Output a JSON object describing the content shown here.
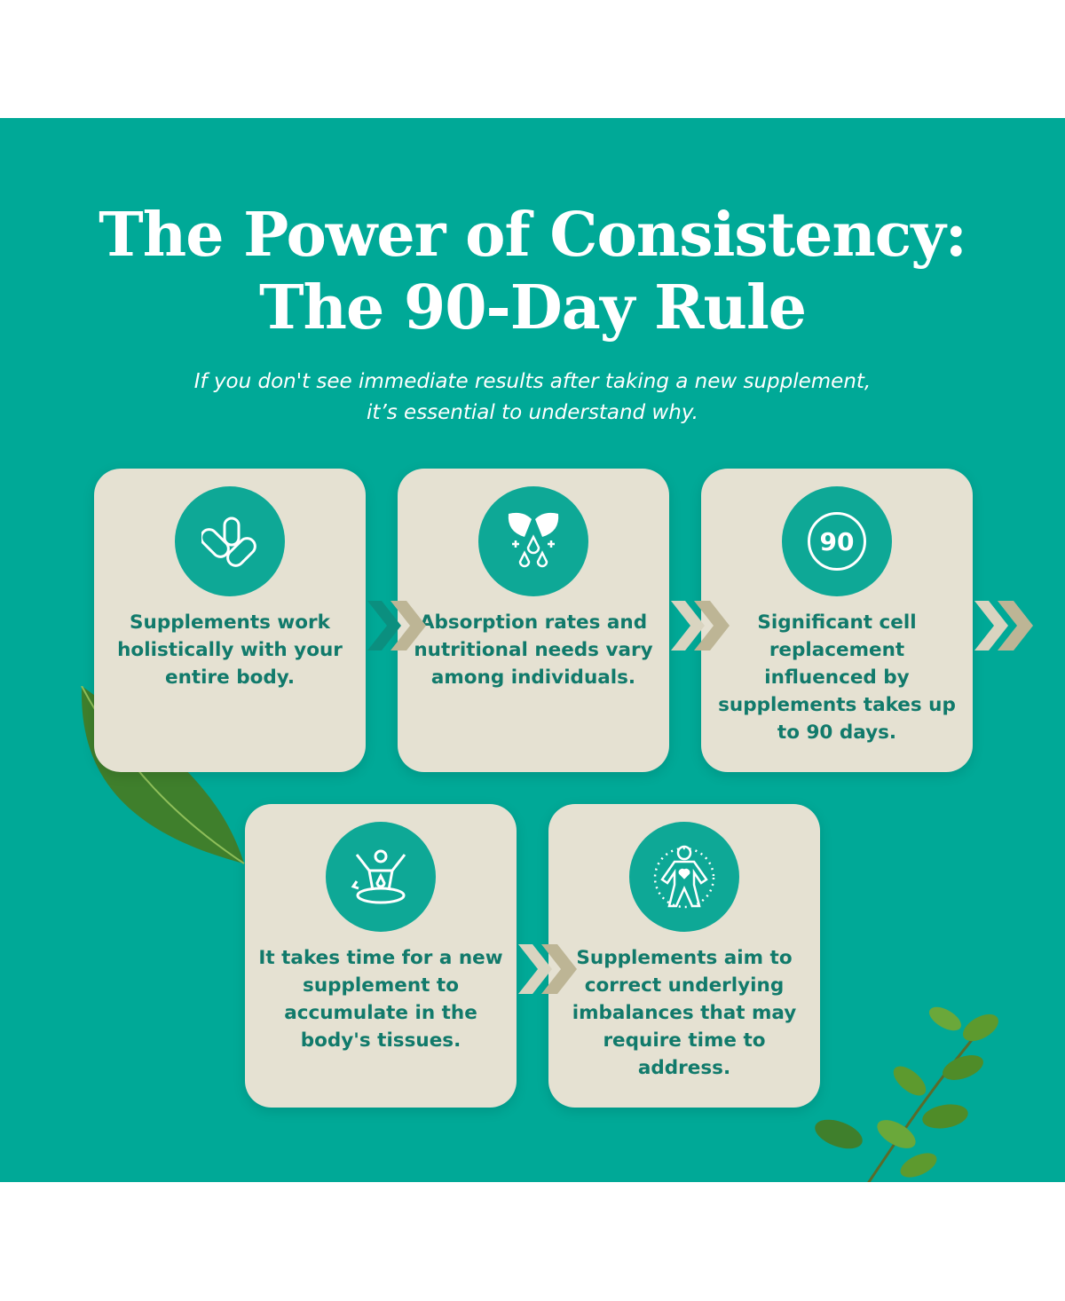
{
  "title": {
    "line1": "The Power of Consistency:",
    "line2": "The 90-Day Rule"
  },
  "subtitle": {
    "line1": "If you don't see immediate results after taking a new supplement,",
    "line2": "it’s essential to understand why."
  },
  "colors": {
    "background": "#00a997",
    "card": "#e5e1d2",
    "text": "#117a6b",
    "chevron": "#bdb595"
  },
  "cards": [
    {
      "icon": "capsules-icon",
      "text": "Supplements work holistically with your entire body."
    },
    {
      "icon": "capsule-drops-icon",
      "text": "Absorption rates and nutritional needs vary among individuals."
    },
    {
      "icon": "ninety-badge-icon",
      "icon_text": "90",
      "text": "Significant cell replacement influenced by supplements takes up to 90 days."
    },
    {
      "icon": "body-absorption-icon",
      "text": "It takes time for a new supplement to accumulate in the body's tissues."
    },
    {
      "icon": "body-heart-icon",
      "text": "Supplements aim to correct underlying imbalances that may require time to address."
    }
  ]
}
